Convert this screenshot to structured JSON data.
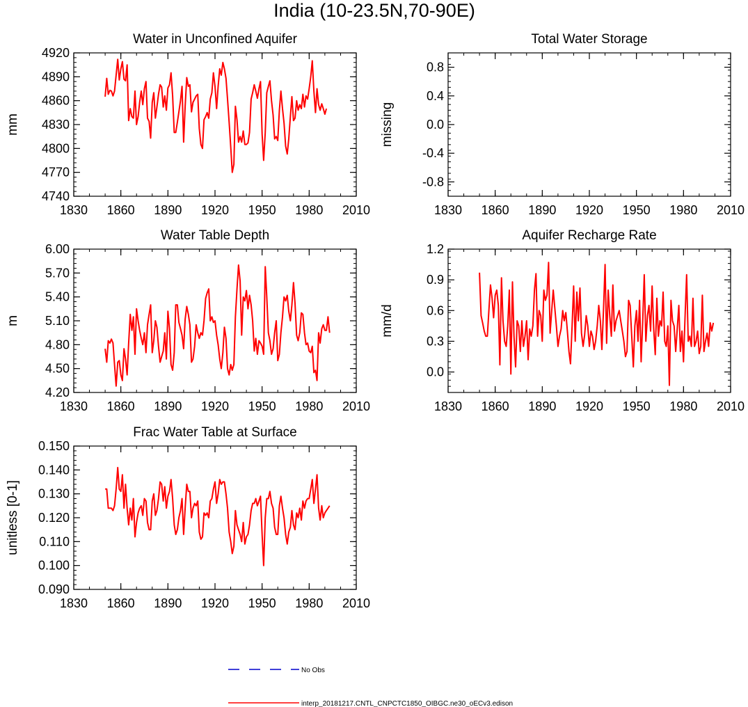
{
  "figure_title": "India (10-23.5N,70-90E)",
  "legend": {
    "obs_label": "No Obs",
    "obs_color": "#0000cc",
    "model_label": "interp_20181217.CNTL_CNPCTC1850_OIBGC.ne30_oECv3.edison",
    "model_color": "#ff0000"
  },
  "chart_data": [
    {
      "type": "line",
      "title": "Water in Unconfined Aquifer",
      "ylabel": "mm",
      "xlim": [
        1830,
        2010
      ],
      "ylim": [
        4740,
        4920
      ],
      "xticks": [
        1830,
        1860,
        1890,
        1920,
        1950,
        1980,
        2010
      ],
      "yticks": [
        4740,
        4770,
        4800,
        4830,
        4860,
        4890,
        4920
      ],
      "yticklabels": [
        "4740",
        "4770",
        "4800",
        "4830",
        "4860",
        "4890",
        "4920"
      ],
      "series": [
        {
          "name": "interp_20181217.CNTL_CNPCTC1850_OIBGC.ne30_oECv3.edison",
          "x_start": 1850,
          "values": [
            4865,
            4888,
            4868,
            4873,
            4872,
            4866,
            4872,
            4892,
            4912,
            4886,
            4900,
            4909,
            4887,
            4885,
            4905,
            4835,
            4850,
            4840,
            4838,
            4872,
            4830,
            4840,
            4858,
            4872,
            4855,
            4875,
            4884,
            4838,
            4834,
            4813,
            4858,
            4870,
            4838,
            4852,
            4868,
            4880,
            4877,
            4852,
            4866,
            4848,
            4876,
            4880,
            4895,
            4866,
            4820,
            4820,
            4833,
            4846,
            4860,
            4878,
            4808,
            4853,
            4889,
            4878,
            4880,
            4846,
            4858,
            4862,
            4866,
            4868,
            4825,
            4805,
            4800,
            4836,
            4840,
            4845,
            4838,
            4862,
            4870,
            4895,
            4878,
            4850,
            4878,
            4900,
            4892,
            4908,
            4900,
            4888,
            4862,
            4833,
            4802,
            4770,
            4780,
            4853,
            4836,
            4808,
            4815,
            4808,
            4822,
            4805,
            4805,
            4807,
            4820,
            4862,
            4870,
            4880,
            4872,
            4863,
            4875,
            4884,
            4818,
            4785,
            4820,
            4870,
            4878,
            4885,
            4860,
            4842,
            4812,
            4815,
            4810,
            4848,
            4872,
            4850,
            4832,
            4803,
            4793,
            4812,
            4840,
            4865,
            4835,
            4838,
            4860,
            4848,
            4855,
            4850,
            4868,
            4852,
            4866,
            4862,
            4875,
            4890,
            4910,
            4872,
            4845,
            4875,
            4855,
            4848,
            4856,
            4850,
            4843,
            4850
          ]
        }
      ]
    },
    {
      "type": "line",
      "title": "Total Water Storage",
      "ylabel": "missing",
      "xlim": [
        1830,
        2010
      ],
      "ylim": [
        -1.0,
        1.0
      ],
      "xticks": [
        1830,
        1860,
        1890,
        1920,
        1950,
        1980,
        2010
      ],
      "yticks": [
        -0.8,
        -0.4,
        0.0,
        0.4,
        0.8
      ],
      "yticklabels": [
        "-0.8",
        "-0.4",
        "0.0",
        "0.4",
        "0.8"
      ],
      "series": []
    },
    {
      "type": "line",
      "title": "Water Table Depth",
      "ylabel": "m",
      "xlim": [
        1830,
        2010
      ],
      "ylim": [
        4.2,
        6.0
      ],
      "xticks": [
        1830,
        1860,
        1890,
        1920,
        1950,
        1980,
        2010
      ],
      "yticks": [
        4.2,
        4.5,
        4.8,
        5.1,
        5.4,
        5.7,
        6.0
      ],
      "yticklabels": [
        "4.20",
        "4.50",
        "4.80",
        "5.10",
        "5.40",
        "5.70",
        "6.00"
      ],
      "series": [
        {
          "name": "interp_20181217.CNTL_CNPCTC1850_OIBGC.ne30_oECv3.edison",
          "x_start": 1850,
          "values": [
            4.75,
            4.58,
            4.85,
            4.82,
            4.87,
            4.82,
            4.55,
            4.28,
            4.58,
            4.6,
            4.42,
            4.35,
            4.75,
            4.62,
            4.42,
            4.82,
            5.18,
            4.98,
            5.15,
            4.68,
            5.25,
            5.1,
            4.98,
            4.88,
            4.8,
            4.95,
            4.7,
            5.05,
            5.18,
            5.3,
            4.7,
            4.85,
            5.1,
            5.02,
            4.78,
            4.58,
            4.65,
            4.72,
            4.95,
            4.62,
            5.22,
            5.0,
            4.55,
            4.48,
            4.7,
            5.3,
            5.3,
            5.08,
            5.0,
            4.92,
            4.75,
            5.12,
            5.28,
            5.18,
            5.05,
            4.58,
            4.62,
            4.78,
            5.05,
            4.95,
            4.88,
            4.95,
            4.92,
            5.1,
            5.38,
            5.45,
            5.5,
            5.1,
            5.15,
            5.08,
            5.1,
            4.92,
            4.8,
            4.62,
            4.5,
            4.7,
            5.02,
            4.88,
            4.5,
            4.42,
            4.55,
            4.48,
            4.55,
            5.15,
            5.5,
            5.8,
            5.6,
            4.92,
            5.4,
            5.35,
            5.48,
            5.25,
            5.42,
            5.3,
            5.1,
            4.72,
            4.88,
            4.68,
            4.85,
            4.82,
            4.78,
            4.68,
            5.78,
            5.4,
            4.95,
            4.85,
            4.68,
            4.75,
            4.95,
            5.1,
            4.6,
            4.68,
            4.95,
            5.15,
            5.4,
            5.35,
            5.42,
            5.22,
            5.1,
            5.3,
            5.58,
            5.32,
            4.92,
            4.85,
            4.95,
            5.2,
            5.18,
            4.95,
            4.8,
            4.82,
            4.72,
            4.7,
            4.78,
            4.45,
            4.48,
            4.35,
            4.95,
            4.82,
            5.0,
            5.05,
            4.98,
            4.98,
            5.15,
            4.95
          ]
        }
      ]
    },
    {
      "type": "line",
      "title": "Aquifer Recharge Rate",
      "ylabel": "mm/d",
      "xlim": [
        1830,
        2010
      ],
      "ylim": [
        -0.2,
        1.2
      ],
      "xticks": [
        1830,
        1860,
        1890,
        1920,
        1950,
        1980,
        2010
      ],
      "yticks": [
        0.0,
        0.3,
        0.6,
        0.9,
        1.2
      ],
      "yticklabels": [
        "0.0",
        "0.3",
        "0.6",
        "0.9",
        "1.2"
      ],
      "series": [
        {
          "name": "interp_20181217.CNTL_CNPCTC1850_OIBGC.ne30_oECv3.edison",
          "x_start": 1850,
          "values": [
            0.97,
            0.55,
            0.48,
            0.4,
            0.35,
            0.35,
            0.6,
            0.85,
            0.72,
            0.53,
            0.75,
            0.8,
            0.65,
            0.07,
            0.92,
            0.5,
            0.3,
            0.25,
            0.45,
            0.8,
            -0.02,
            0.88,
            0.35,
            0.05,
            0.5,
            0.45,
            0.2,
            0.5,
            0.25,
            0.35,
            0.5,
            0.12,
            0.42,
            0.35,
            0.45,
            0.8,
            0.96,
            0.35,
            0.6,
            0.55,
            0.3,
            0.8,
            0.7,
            0.75,
            1.07,
            0.38,
            0.6,
            0.8,
            0.62,
            0.45,
            0.25,
            0.35,
            0.42,
            0.6,
            0.5,
            0.58,
            0.4,
            0.2,
            0.08,
            0.45,
            0.84,
            0.3,
            0.78,
            0.5,
            0.82,
            0.38,
            0.25,
            0.36,
            0.55,
            0.45,
            0.25,
            0.4,
            0.35,
            0.22,
            0.3,
            0.45,
            0.65,
            0.5,
            0.22,
            0.6,
            1.05,
            0.28,
            0.8,
            0.55,
            0.35,
            0.85,
            0.4,
            0.5,
            0.55,
            0.6,
            0.5,
            0.4,
            0.3,
            0.15,
            0.2,
            0.7,
            0.65,
            0.35,
            0.05,
            0.45,
            0.6,
            0.3,
            0.7,
            0.1,
            0.5,
            0.95,
            0.3,
            0.55,
            0.65,
            0.4,
            0.84,
            0.42,
            0.17,
            0.72,
            0.35,
            0.5,
            0.45,
            0.78,
            0.3,
            0.25,
            0.45,
            -0.13,
            0.7,
            0.5,
            0.45,
            0.2,
            0.42,
            0.65,
            0.2,
            0.4,
            0.1,
            0.55,
            0.95,
            0.3,
            0.35,
            0.25,
            0.72,
            0.25,
            0.3,
            0.4,
            0.18,
            0.25,
            0.75,
            0.2,
            0.3,
            0.38,
            0.25,
            0.48,
            0.4,
            0.48
          ]
        }
      ]
    },
    {
      "type": "line",
      "title": "Frac Water Table at Surface",
      "ylabel": "unitless [0-1]",
      "xlim": [
        1830,
        2010
      ],
      "ylim": [
        0.09,
        0.15
      ],
      "xticks": [
        1830,
        1860,
        1890,
        1920,
        1950,
        1980,
        2010
      ],
      "yticks": [
        0.09,
        0.1,
        0.11,
        0.12,
        0.13,
        0.14,
        0.15
      ],
      "yticklabels": [
        "0.090",
        "0.100",
        "0.110",
        "0.120",
        "0.130",
        "0.140",
        "0.150"
      ],
      "series": [
        {
          "name": "interp_20181217.CNTL_CNPCTC1850_OIBGC.ne30_oECv3.edison",
          "x_start": 1850,
          "values": [
            0.132,
            0.132,
            0.124,
            0.124,
            0.124,
            0.123,
            0.125,
            0.132,
            0.141,
            0.132,
            0.131,
            0.138,
            0.124,
            0.134,
            0.124,
            0.117,
            0.124,
            0.119,
            0.128,
            0.112,
            0.118,
            0.122,
            0.124,
            0.125,
            0.121,
            0.128,
            0.127,
            0.118,
            0.115,
            0.115,
            0.127,
            0.13,
            0.121,
            0.123,
            0.128,
            0.135,
            0.134,
            0.127,
            0.133,
            0.124,
            0.129,
            0.131,
            0.136,
            0.128,
            0.117,
            0.113,
            0.115,
            0.12,
            0.123,
            0.128,
            0.113,
            0.124,
            0.134,
            0.131,
            0.131,
            0.12,
            0.124,
            0.126,
            0.125,
            0.127,
            0.114,
            0.111,
            0.112,
            0.122,
            0.121,
            0.122,
            0.12,
            0.127,
            0.128,
            0.132,
            0.135,
            0.126,
            0.13,
            0.136,
            0.134,
            0.135,
            0.135,
            0.13,
            0.124,
            0.114,
            0.11,
            0.105,
            0.108,
            0.123,
            0.117,
            0.115,
            0.113,
            0.11,
            0.118,
            0.109,
            0.112,
            0.113,
            0.117,
            0.123,
            0.126,
            0.126,
            0.128,
            0.125,
            0.127,
            0.129,
            0.113,
            0.1,
            0.12,
            0.128,
            0.128,
            0.131,
            0.126,
            0.124,
            0.116,
            0.113,
            0.113,
            0.125,
            0.129,
            0.124,
            0.12,
            0.113,
            0.109,
            0.114,
            0.116,
            0.123,
            0.117,
            0.115,
            0.122,
            0.12,
            0.124,
            0.119,
            0.127,
            0.124,
            0.127,
            0.128,
            0.128,
            0.132,
            0.136,
            0.126,
            0.132,
            0.138,
            0.124,
            0.119,
            0.125,
            0.12,
            0.122,
            0.123,
            0.124,
            0.125
          ]
        }
      ]
    }
  ]
}
